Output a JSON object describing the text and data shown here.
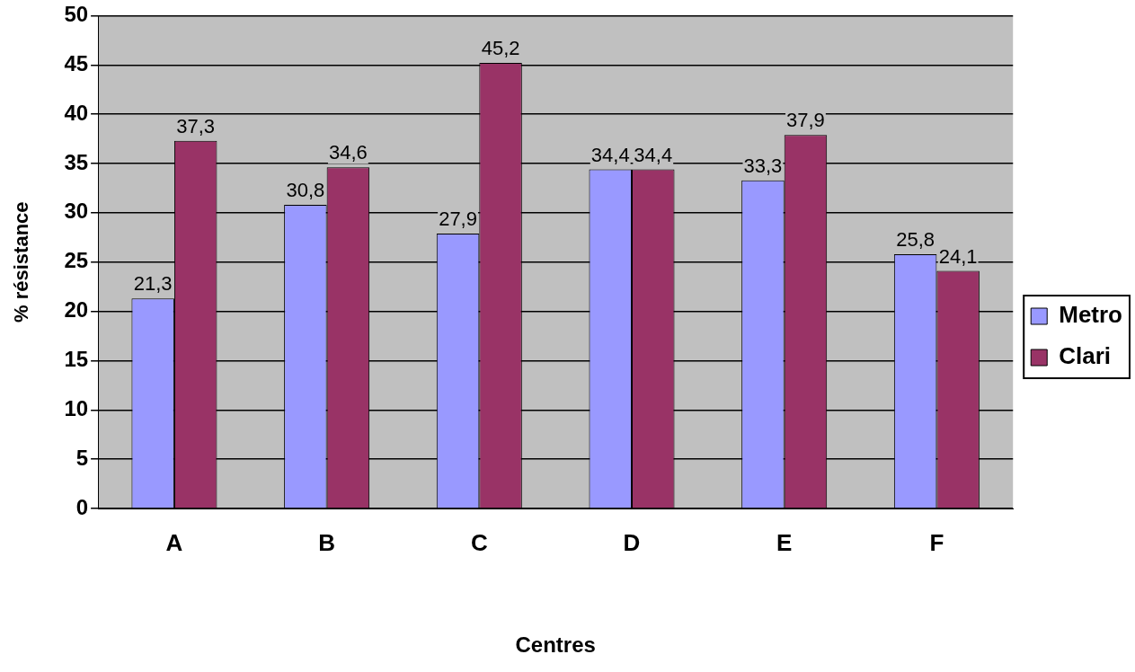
{
  "chart_data": {
    "type": "bar",
    "xlabel": "Centres",
    "ylabel": "% résistance",
    "categories": [
      "A",
      "B",
      "C",
      "D",
      "E",
      "F"
    ],
    "series": [
      {
        "name": "Metro",
        "color": "#9999ff",
        "values": [
          21.3,
          30.8,
          27.9,
          34.4,
          33.3,
          25.8
        ],
        "value_labels": [
          "21,3",
          "30,8",
          "27,9",
          "34,4",
          "33,3",
          "25,8"
        ]
      },
      {
        "name": "Clari",
        "color": "#993366",
        "values": [
          37.3,
          34.6,
          45.2,
          34.4,
          37.9,
          24.1
        ],
        "value_labels": [
          "37,3",
          "34,6",
          "45,2",
          "34,4",
          "37,9",
          "24,1"
        ]
      }
    ],
    "ylim": [
      0,
      50
    ],
    "yticks": [
      0,
      5,
      10,
      15,
      20,
      25,
      30,
      35,
      40,
      45,
      50
    ],
    "grid": "y",
    "legend": "right"
  }
}
